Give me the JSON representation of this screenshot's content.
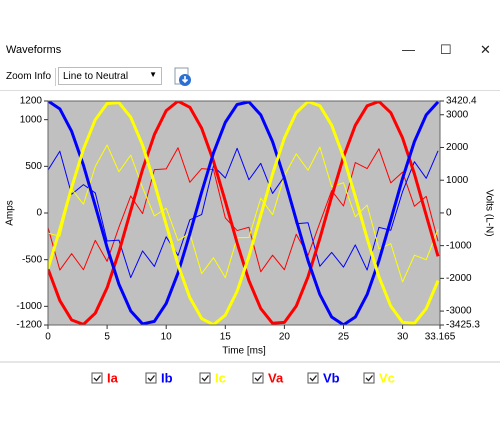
{
  "window": {
    "title": "Waveforms"
  },
  "toolbar": {
    "zoom_label": "Zoom Info",
    "dropdown": "Line to Neutral"
  },
  "chart_data": {
    "type": "line",
    "xlabel": "Time [ms]",
    "ylabel": "Amps",
    "y2label": "Volts (L-N)",
    "x": [
      0,
      1,
      2,
      3,
      4,
      5,
      6,
      7,
      8,
      9,
      10,
      11,
      12,
      13,
      14,
      15,
      16,
      17,
      18,
      19,
      20,
      21,
      22,
      23,
      24,
      25,
      26,
      27,
      28,
      29,
      30,
      31,
      32,
      33
    ],
    "xlim": [
      0,
      33.165
    ],
    "xticks": [
      0,
      5,
      10,
      15,
      20,
      25,
      30,
      33.165
    ],
    "ylim": [
      -1200,
      1200
    ],
    "yticks": [
      1200,
      1000,
      500,
      0,
      -500,
      -1000,
      -1200
    ],
    "y2lim": [
      -3425.3,
      3420.4
    ],
    "y2ticks": [
      3420.4,
      3000,
      2000,
      1000,
      0,
      -1000,
      -2000,
      -3000,
      -3425.3
    ],
    "background": "#c0c0c0",
    "series": [
      {
        "name": "Ia",
        "color": "#ff0000",
        "values": [
          -155,
          -611,
          -436,
          -608,
          -293,
          -518,
          -152,
          182,
          -7,
          465,
          473,
          699,
          329,
          476,
          465,
          -52,
          -188,
          -153,
          -630,
          -452,
          -608,
          -228,
          -454,
          -105,
          240,
          75,
          541,
          476,
          688,
          323,
          438,
          72,
          178,
          -303
        ]
      },
      {
        "name": "Ib",
        "color": "#0000ff",
        "values": [
          460,
          662,
          201,
          304,
          215,
          -300,
          -290,
          -692,
          -406,
          -573,
          -255,
          -455,
          -73,
          -17,
          505,
          375,
          693,
          356,
          532,
          210,
          390,
          -115,
          -104,
          -571,
          -422,
          -580,
          -342,
          -611,
          -154,
          -185,
          230,
          550,
          372,
          666
        ]
      },
      {
        "name": "Ic",
        "color": "#ffff00",
        "values": [
          -215,
          -250,
          255,
          94,
          498,
          728,
          442,
          620,
          273,
          -32,
          52,
          -295,
          -216,
          -649,
          -479,
          -693,
          -265,
          -263,
          158,
          -18,
          398,
          633,
          458,
          706,
          281,
          325,
          -40,
          85,
          -384,
          -328,
          -738,
          -452,
          -500,
          -173
        ]
      },
      {
        "name": "Va",
        "color": "#ff0000",
        "axis": "y2",
        "values": [
          -1710,
          -2678,
          -3273,
          -3406,
          -3064,
          -2288,
          -1194,
          72,
          1327,
          2394,
          3126,
          3417,
          3228,
          2589,
          1583,
          359,
          -920,
          -2069,
          -2924,
          -3372,
          -3345,
          -2849,
          -1953,
          -780,
          499,
          1710,
          2678,
          3273,
          3406,
          3064,
          2288,
          1194,
          -72,
          -1327
        ]
      },
      {
        "name": "Vb",
        "color": "#0000ff",
        "axis": "y2",
        "values": [
          3420,
          3181,
          2493,
          1457,
          215,
          -1057,
          -2179,
          -2996,
          -3393,
          -3314,
          -2767,
          -1833,
          -640,
          640,
          1833,
          2767,
          3314,
          3393,
          2996,
          2179,
          1057,
          -215,
          -1457,
          -2493,
          -3181,
          -3420,
          -3181,
          -2493,
          -1457,
          -215,
          1057,
          2179,
          2996,
          3393
        ]
      },
      {
        "name": "Vc",
        "color": "#ffff00",
        "axis": "y2",
        "values": [
          -1710,
          -499,
          780,
          1953,
          2849,
          3345,
          3372,
          2924,
          2069,
          920,
          -359,
          -1583,
          -2589,
          -3228,
          -3417,
          -3126,
          -2394,
          -1327,
          -72,
          1194,
          2288,
          3064,
          3406,
          3273,
          2681,
          1710,
          499,
          -780,
          -1953,
          -2849,
          -3345,
          -3372,
          -2924,
          -2069
        ]
      }
    ]
  }
}
